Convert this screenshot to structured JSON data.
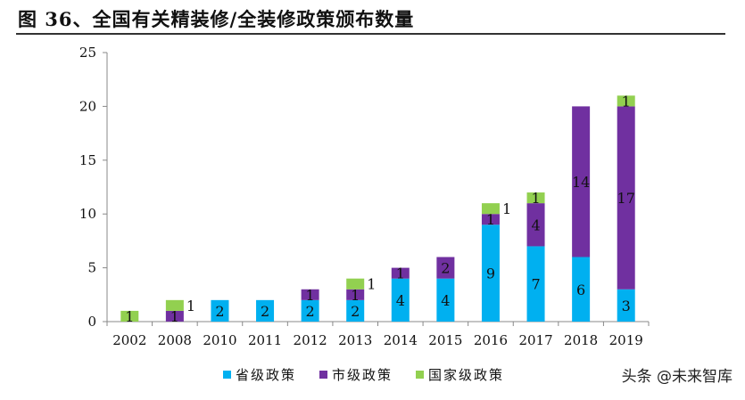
{
  "title": "图 36、全国有关精装修/全装修政策颁布数量",
  "watermark": "头条 @未来智库",
  "chart_data": {
    "type": "bar",
    "stacked": true,
    "categories": [
      "2002",
      "2008",
      "2010",
      "2011",
      "2012",
      "2013",
      "2014",
      "2015",
      "2016",
      "2017",
      "2018",
      "2019"
    ],
    "series": [
      {
        "name": "省级政策",
        "color": "#00B0F0",
        "values": [
          0,
          0,
          2,
          2,
          2,
          2,
          4,
          4,
          9,
          7,
          6,
          3
        ]
      },
      {
        "name": "市级政策",
        "color": "#7030A0",
        "values": [
          0,
          1,
          0,
          0,
          1,
          1,
          1,
          2,
          1,
          4,
          14,
          17
        ]
      },
      {
        "name": "国家级政策",
        "color": "#92D050",
        "values": [
          1,
          1,
          0,
          0,
          0,
          1,
          0,
          0,
          1,
          1,
          0,
          1
        ]
      }
    ],
    "ylim": [
      0,
      25
    ],
    "yticks": [
      0,
      5,
      10,
      15,
      20,
      25
    ],
    "grid": false,
    "legend": "bottom",
    "data_labels": true
  }
}
